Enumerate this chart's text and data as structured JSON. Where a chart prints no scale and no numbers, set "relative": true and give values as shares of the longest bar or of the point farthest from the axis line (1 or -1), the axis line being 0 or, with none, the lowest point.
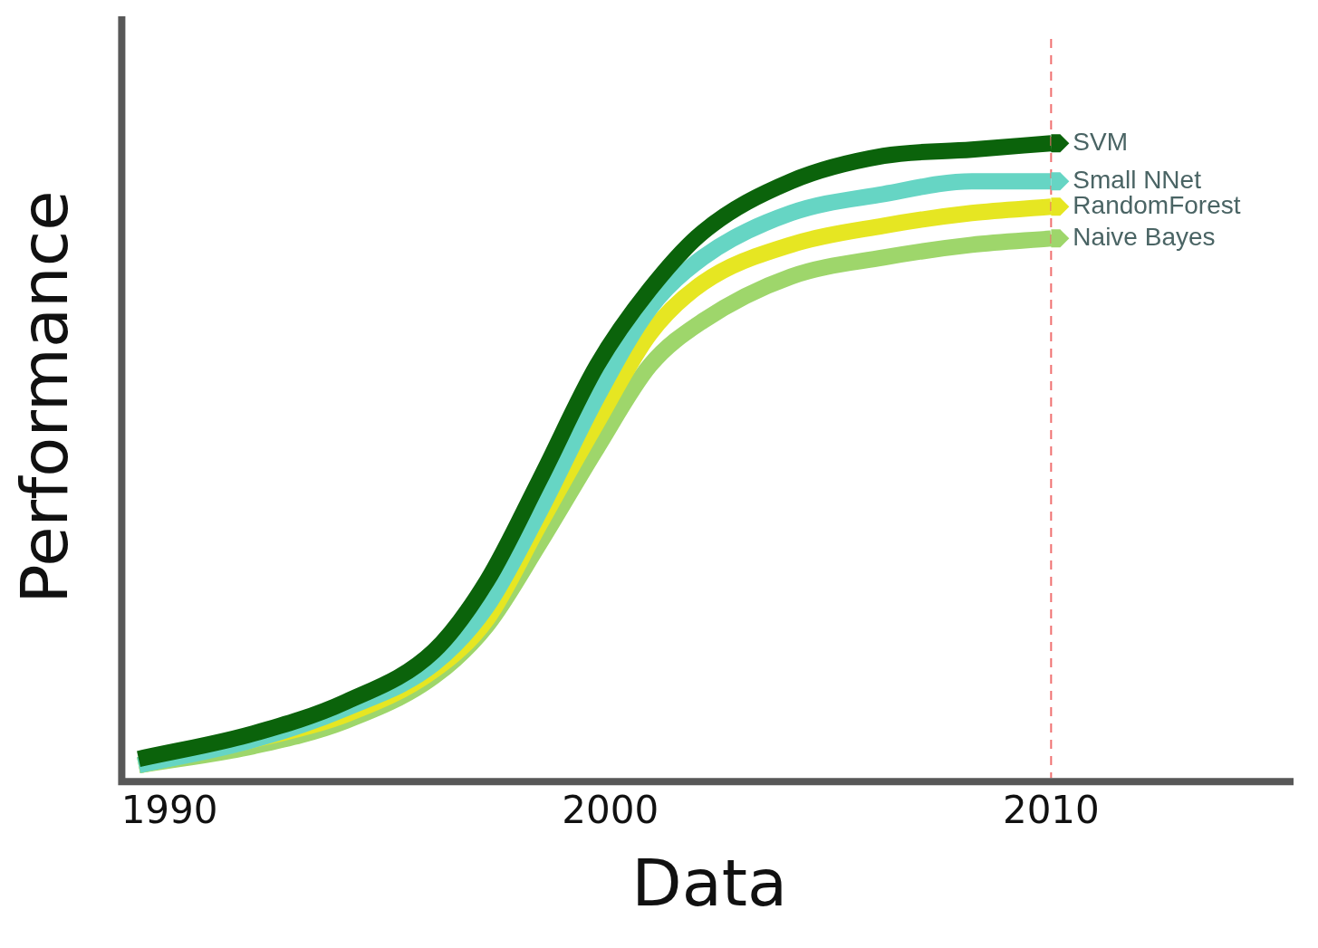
{
  "chart_data": {
    "type": "line",
    "xlabel": "Data",
    "ylabel": "Performance",
    "relative": true,
    "xlim": [
      1989,
      2015.5
    ],
    "xticks": [
      1990,
      2000,
      2010
    ],
    "x": [
      1989.3,
      1991.9,
      1994.0,
      1996.0,
      1997.2,
      1998.4,
      1999.7,
      2000.9,
      2002.1,
      2004.1,
      2006.2,
      2008.2,
      2010.0
    ],
    "series": [
      {
        "name": "SVM",
        "color": "#0b630b",
        "values": [
          0.03,
          0.07,
          0.12,
          0.2,
          0.31,
          0.47,
          0.65,
          0.77,
          0.86,
          0.94,
          0.98,
          0.99,
          1
        ]
      },
      {
        "name": "Small NNet",
        "color": "#66d5c4",
        "values": [
          0.02,
          0.06,
          0.11,
          0.18,
          0.27,
          0.42,
          0.6,
          0.74,
          0.82,
          0.89,
          0.92,
          0.94,
          0.94
        ]
      },
      {
        "name": "RandomForest",
        "color": "#e6e622",
        "values": [
          0.02,
          0.06,
          0.1,
          0.17,
          0.25,
          0.4,
          0.56,
          0.7,
          0.78,
          0.84,
          0.87,
          0.89,
          0.9
        ]
      },
      {
        "name": "Naive Bayes",
        "color": "#9ed66b",
        "values": [
          0.02,
          0.05,
          0.09,
          0.16,
          0.24,
          0.37,
          0.52,
          0.65,
          0.72,
          0.79,
          0.82,
          0.84,
          0.85
        ]
      }
    ],
    "ref_lines": [
      {
        "axis": "x",
        "value": 2010,
        "color": "#f07070",
        "line_style": "dashed"
      }
    ],
    "grid": false,
    "legend": "top right",
    "marker": "none",
    "line_style": "solid"
  }
}
